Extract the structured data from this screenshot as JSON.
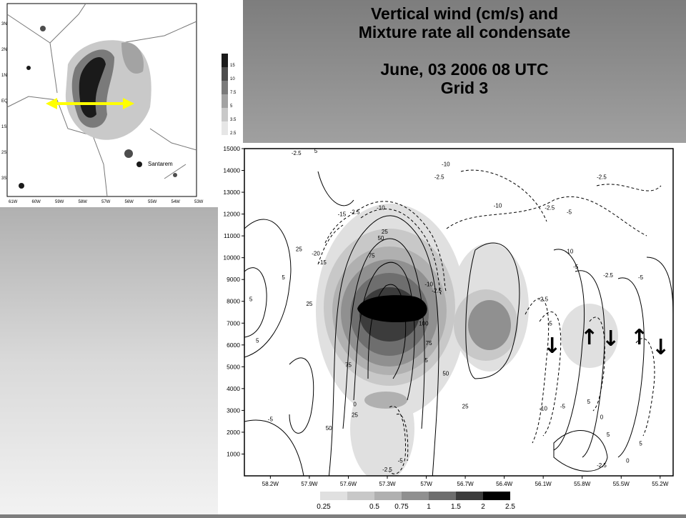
{
  "title": {
    "line1": "Vertical wind (cm/s) and",
    "line2": "Mixture rate all condensate",
    "line3": "June, 03 2006 08 UTC",
    "line4": "Grid 3"
  },
  "map": {
    "city_label": "Santarem",
    "x_ticks": [
      "61W",
      "60W",
      "59W",
      "58W",
      "57W",
      "56W",
      "55W",
      "54W",
      "53W"
    ],
    "y_ticks": [
      "3N",
      "2N",
      "1N",
      "EQ",
      "1S",
      "2S",
      "3S"
    ],
    "legend_values": [
      "15",
      "10",
      "7.5",
      "5",
      "3.5",
      "2.5"
    ],
    "legend_colors": [
      "#1a1a1a",
      "#4d4d4d",
      "#7a7a7a",
      "#a3a3a3",
      "#c9c9c9",
      "#e6e6e6"
    ],
    "cross_section_color": "#ffff00"
  },
  "chart_data": {
    "type": "contour",
    "x_ticks": [
      "58.2W",
      "57.9W",
      "57.6W",
      "57.3W",
      "57W",
      "56.7W",
      "56.4W",
      "56.1W",
      "55.8W",
      "55.5W",
      "55.2W"
    ],
    "y_ticks": [
      1000,
      2000,
      3000,
      4000,
      5000,
      6000,
      7000,
      8000,
      9000,
      10000,
      11000,
      12000,
      13000,
      14000,
      15000
    ],
    "xlim": [
      "58.4W",
      "55.1W"
    ],
    "ylim": [
      0,
      15000
    ],
    "shading_legend": {
      "values": [
        "0.25",
        "0.5",
        "0.75",
        "1",
        "1.5",
        "2",
        "2.5"
      ],
      "colors": [
        "#e0e0e0",
        "#c8c8c8",
        "#b0b0b0",
        "#909090",
        "#6e6e6e",
        "#3c3c3c",
        "#000000"
      ]
    },
    "contour_labels": [
      {
        "text": "-2.5",
        "x": -58.0,
        "y": 14700
      },
      {
        "text": "5",
        "x": -57.85,
        "y": 14800
      },
      {
        "text": "-2.5",
        "x": -57.55,
        "y": 12000
      },
      {
        "text": "-10",
        "x": -57.35,
        "y": 12200
      },
      {
        "text": "-15",
        "x": -57.65,
        "y": 11900
      },
      {
        "text": "25",
        "x": -57.32,
        "y": 11100
      },
      {
        "text": "50",
        "x": -57.35,
        "y": 10800
      },
      {
        "text": "-20",
        "x": -57.85,
        "y": 10100
      },
      {
        "text": "-15",
        "x": -57.8,
        "y": 9700
      },
      {
        "text": "75",
        "x": -57.42,
        "y": 10000
      },
      {
        "text": "-10",
        "x": -56.98,
        "y": 8700
      },
      {
        "text": "-2.5",
        "x": -56.92,
        "y": 8400
      },
      {
        "text": "100",
        "x": -57.02,
        "y": 6900
      },
      {
        "text": "75",
        "x": -56.98,
        "y": 6000
      },
      {
        "text": "75",
        "x": -57.6,
        "y": 5000
      },
      {
        "text": "50",
        "x": -56.85,
        "y": 4600
      },
      {
        "text": "25",
        "x": -56.7,
        "y": 3100
      },
      {
        "text": "0",
        "x": -57.55,
        "y": 3200
      },
      {
        "text": "25",
        "x": -57.55,
        "y": 2700
      },
      {
        "text": "50",
        "x": -57.75,
        "y": 2100
      },
      {
        "text": "-5",
        "x": -57.2,
        "y": 600
      },
      {
        "text": "-2.5",
        "x": -57.3,
        "y": 200
      },
      {
        "text": "-10",
        "x": -56.85,
        "y": 14200
      },
      {
        "text": "-2.5",
        "x": -56.9,
        "y": 13600
      },
      {
        "text": "-10",
        "x": -56.45,
        "y": 12300
      },
      {
        "text": "-2.5",
        "x": -56.05,
        "y": 12200
      },
      {
        "text": "-5",
        "x": -55.9,
        "y": 12000
      },
      {
        "text": "-2.5",
        "x": -55.65,
        "y": 13600
      },
      {
        "text": "-10",
        "x": -55.9,
        "y": 10200
      },
      {
        "text": "-5",
        "x": -55.85,
        "y": 9500
      },
      {
        "text": "-2.5",
        "x": -55.6,
        "y": 9100
      },
      {
        "text": "-5",
        "x": -55.35,
        "y": 9000
      },
      {
        "text": "-2.5",
        "x": -56.1,
        "y": 8000
      },
      {
        "text": "-5",
        "x": -56.05,
        "y": 6900
      },
      {
        "text": "-10",
        "x": -56.1,
        "y": 3000
      },
      {
        "text": "-5",
        "x": -55.95,
        "y": 3100
      },
      {
        "text": "5",
        "x": -55.75,
        "y": 3300
      },
      {
        "text": "5",
        "x": -55.6,
        "y": 1800
      },
      {
        "text": "0",
        "x": -55.65,
        "y": 2600
      },
      {
        "text": "-2.5",
        "x": -55.65,
        "y": 400
      },
      {
        "text": "0",
        "x": -55.45,
        "y": 600
      },
      {
        "text": "5",
        "x": -55.35,
        "y": 1400
      },
      {
        "text": "5",
        "x": -58.35,
        "y": 8000
      },
      {
        "text": "5",
        "x": -58.3,
        "y": 6100
      },
      {
        "text": "5",
        "x": -58.1,
        "y": 9000
      },
      {
        "text": "25",
        "x": -57.98,
        "y": 10300
      },
      {
        "text": "25",
        "x": -57.9,
        "y": 7800
      },
      {
        "text": "-5",
        "x": -58.2,
        "y": 2500
      },
      {
        "text": "5",
        "x": -57.0,
        "y": 5200
      }
    ],
    "arrows": [
      {
        "direction": "down",
        "label": "down-arrow"
      },
      {
        "direction": "up",
        "label": "up-arrow"
      },
      {
        "direction": "down",
        "label": "down-arrow"
      },
      {
        "direction": "up",
        "label": "up-arrow"
      },
      {
        "direction": "down",
        "label": "down-arrow"
      }
    ],
    "arrow_glyphs": {
      "up": "↑",
      "down": "↓"
    }
  }
}
